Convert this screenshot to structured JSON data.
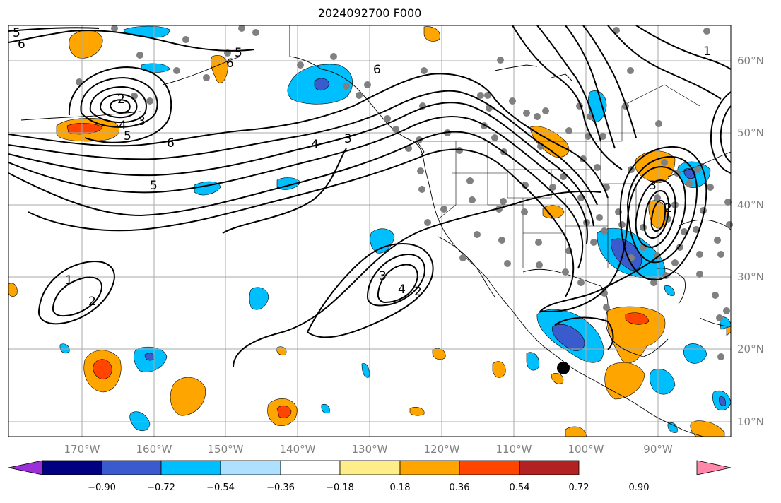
{
  "title": "2024092700 F000",
  "lat_labels": [
    "60°N",
    "50°N",
    "40°N",
    "30°N",
    "20°N",
    "10°N"
  ],
  "lon_labels": [
    "170°W",
    "160°W",
    "150°W",
    "140°W",
    "130°W",
    "120°W",
    "110°W",
    "100°W",
    "90°W"
  ],
  "colorbar": {
    "ticks": [
      "−0.90",
      "−0.72",
      "−0.54",
      "−0.36",
      "−0.18",
      "0.18",
      "0.36",
      "0.54",
      "0.72",
      "0.90"
    ],
    "colors": [
      "#9b30d9",
      "#000080",
      "#3a5bcd",
      "#00bfff",
      "#aee0ff",
      "#ffffff",
      "#ffed8a",
      "#ffa500",
      "#ff4500",
      "#b22222",
      "#ff88aa"
    ]
  },
  "map": {
    "extent": {
      "lon": [
        -180,
        -80
      ],
      "lat": [
        8,
        65
      ]
    },
    "grid": true,
    "contour_labels": [
      "5",
      "6",
      "5",
      "6",
      "2",
      "3",
      "4",
      "5",
      "6",
      "6",
      "4",
      "3",
      "5",
      "1",
      "2",
      "3",
      "4",
      "2",
      "3",
      "2",
      "1"
    ],
    "marker": "black-dot"
  }
}
